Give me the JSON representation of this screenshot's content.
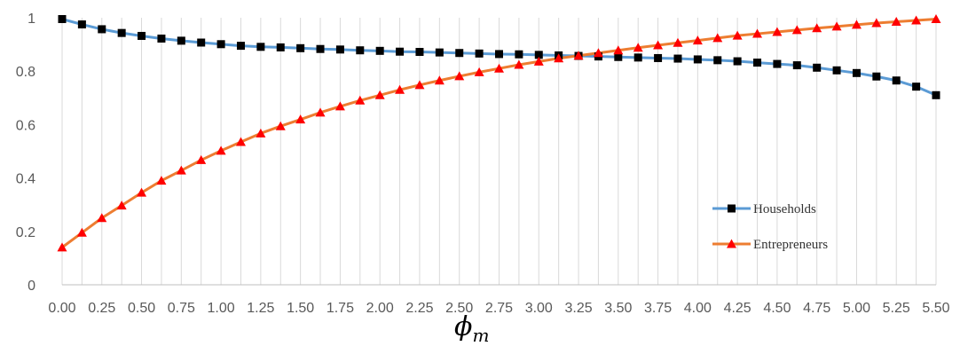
{
  "chart_data": {
    "type": "line",
    "title": "",
    "xlabel": "ϕ",
    "xlabel_subscript": "m",
    "ylabel": "",
    "x": [
      0.0,
      0.125,
      0.25,
      0.375,
      0.5,
      0.625,
      0.75,
      0.875,
      1.0,
      1.125,
      1.25,
      1.375,
      1.5,
      1.625,
      1.75,
      1.875,
      2.0,
      2.125,
      2.25,
      2.375,
      2.5,
      2.625,
      2.75,
      2.875,
      3.0,
      3.125,
      3.25,
      3.375,
      3.5,
      3.625,
      3.75,
      3.875,
      4.0,
      4.125,
      4.25,
      4.375,
      4.5,
      4.625,
      4.75,
      4.875,
      5.0,
      5.125,
      5.25,
      5.375,
      5.5
    ],
    "x_tick_labels": [
      "0.00",
      "0.25",
      "0.50",
      "0.75",
      "1.00",
      "1.25",
      "1.50",
      "1.75",
      "2.00",
      "2.25",
      "2.50",
      "2.75",
      "3.00",
      "3.25",
      "3.50",
      "3.75",
      "4.00",
      "4.25",
      "4.50",
      "4.75",
      "5.00",
      "5.25",
      "5.50"
    ],
    "y_tick_labels": [
      "0",
      "0.2",
      "0.4",
      "0.6",
      "0.8",
      "1"
    ],
    "ylim": [
      0,
      1
    ],
    "grid": "vertical lines at every data point",
    "legend_position": "right, inside plot area",
    "series": [
      {
        "name": "Households",
        "color": "#5B9BD5",
        "marker": "square",
        "marker_color": "#000000",
        "values": [
          0.995,
          0.975,
          0.957,
          0.943,
          0.932,
          0.922,
          0.914,
          0.907,
          0.901,
          0.895,
          0.891,
          0.889,
          0.886,
          0.883,
          0.881,
          0.878,
          0.876,
          0.873,
          0.872,
          0.87,
          0.868,
          0.866,
          0.864,
          0.863,
          0.861,
          0.859,
          0.857,
          0.855,
          0.853,
          0.851,
          0.849,
          0.847,
          0.844,
          0.841,
          0.837,
          0.832,
          0.827,
          0.822,
          0.813,
          0.803,
          0.793,
          0.78,
          0.765,
          0.742,
          0.71
        ]
      },
      {
        "name": "Entrepreneurs",
        "color": "#ED7D31",
        "marker": "triangle",
        "marker_color": "#FF0000",
        "values": [
          0.14,
          0.195,
          0.25,
          0.297,
          0.345,
          0.39,
          0.428,
          0.467,
          0.502,
          0.535,
          0.567,
          0.594,
          0.619,
          0.645,
          0.668,
          0.69,
          0.71,
          0.73,
          0.748,
          0.765,
          0.781,
          0.796,
          0.81,
          0.824,
          0.836,
          0.848,
          0.858,
          0.868,
          0.878,
          0.888,
          0.897,
          0.906,
          0.915,
          0.924,
          0.933,
          0.94,
          0.947,
          0.954,
          0.961,
          0.967,
          0.974,
          0.98,
          0.985,
          0.99,
          0.995
        ]
      }
    ]
  }
}
